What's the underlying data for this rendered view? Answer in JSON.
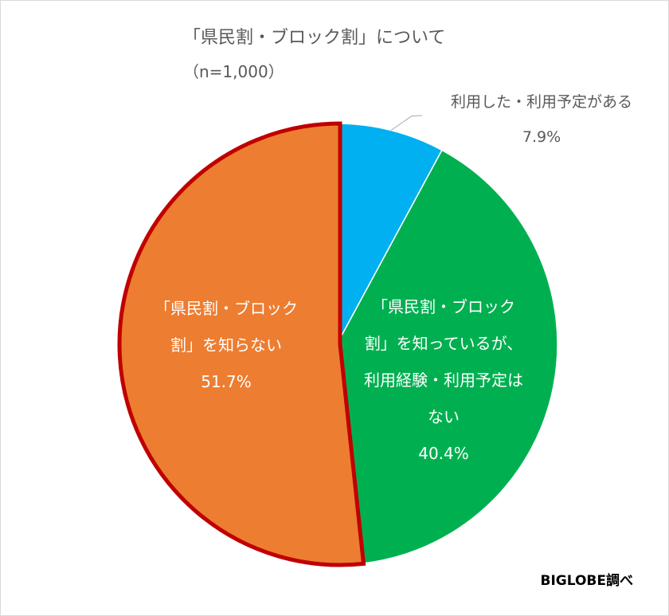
{
  "title": "「県民割・ブロック割」について",
  "subtitle": "（n=1,000）",
  "credit": "BIGLOBE調べ",
  "chart_data": {
    "type": "pie",
    "title": "「県民割・ブロック割」について",
    "subtitle": "（n=1,000）",
    "start_angle": "12 o'clock, clockwise",
    "slices": [
      {
        "label": "利用した・利用予定がある",
        "label_lines": [
          "利用した・利用予定がある"
        ],
        "value": 7.9,
        "value_label": "7.9%",
        "color": "#00b0f0"
      },
      {
        "label": "「県民割・ブロック割」を知っているが、利用経験・利用予定はない",
        "label_lines": [
          "「県民割・ブロック",
          "割」を知っているが、",
          "利用経験・利用予定は",
          "ない"
        ],
        "value": 40.4,
        "value_label": "40.4%",
        "color": "#00b050"
      },
      {
        "label": "「県民割・ブロック割」を知らない",
        "label_lines": [
          "「県民割・ブロック",
          "割」を知らない"
        ],
        "value": 51.7,
        "value_label": "51.7%",
        "color": "#ed7d31",
        "highlight_border": "#c00000"
      }
    ]
  }
}
